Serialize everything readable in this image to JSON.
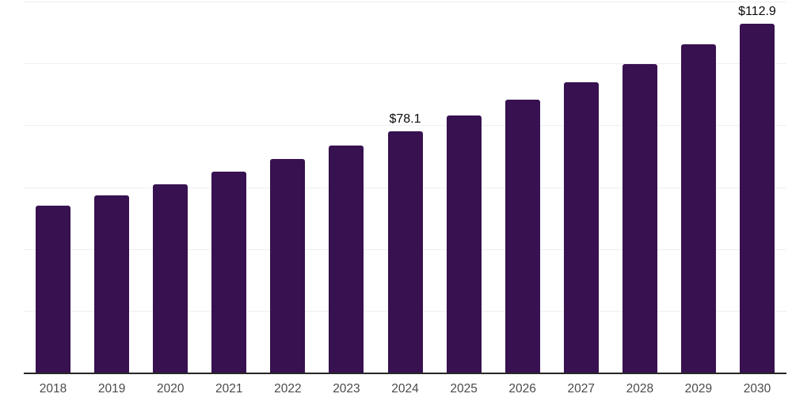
{
  "chart_data": {
    "type": "bar",
    "title": "",
    "xlabel": "",
    "ylabel": "",
    "categories": [
      "2018",
      "2019",
      "2020",
      "2021",
      "2022",
      "2023",
      "2024",
      "2025",
      "2026",
      "2027",
      "2028",
      "2029",
      "2030"
    ],
    "values": [
      54.1,
      57.4,
      61.0,
      65.1,
      69.1,
      73.5,
      78.1,
      83.1,
      88.3,
      93.9,
      99.9,
      106.2,
      112.9
    ],
    "data_labels": [
      "",
      "",
      "",
      "",
      "",
      "",
      "$78.1",
      "",
      "",
      "",
      "",
      "",
      "$112.9"
    ],
    "ylim": [
      0,
      120
    ],
    "grid_step": 20,
    "grid_visible": true,
    "y_tick_labels_visible": false,
    "legend_position": "none",
    "colors": {
      "bar": "#371150",
      "gridline": "#efefef",
      "axis_line": "#262626",
      "tick_label": "#4a4a4a",
      "data_label": "#0a0a0a",
      "background": "#ffffff"
    }
  }
}
